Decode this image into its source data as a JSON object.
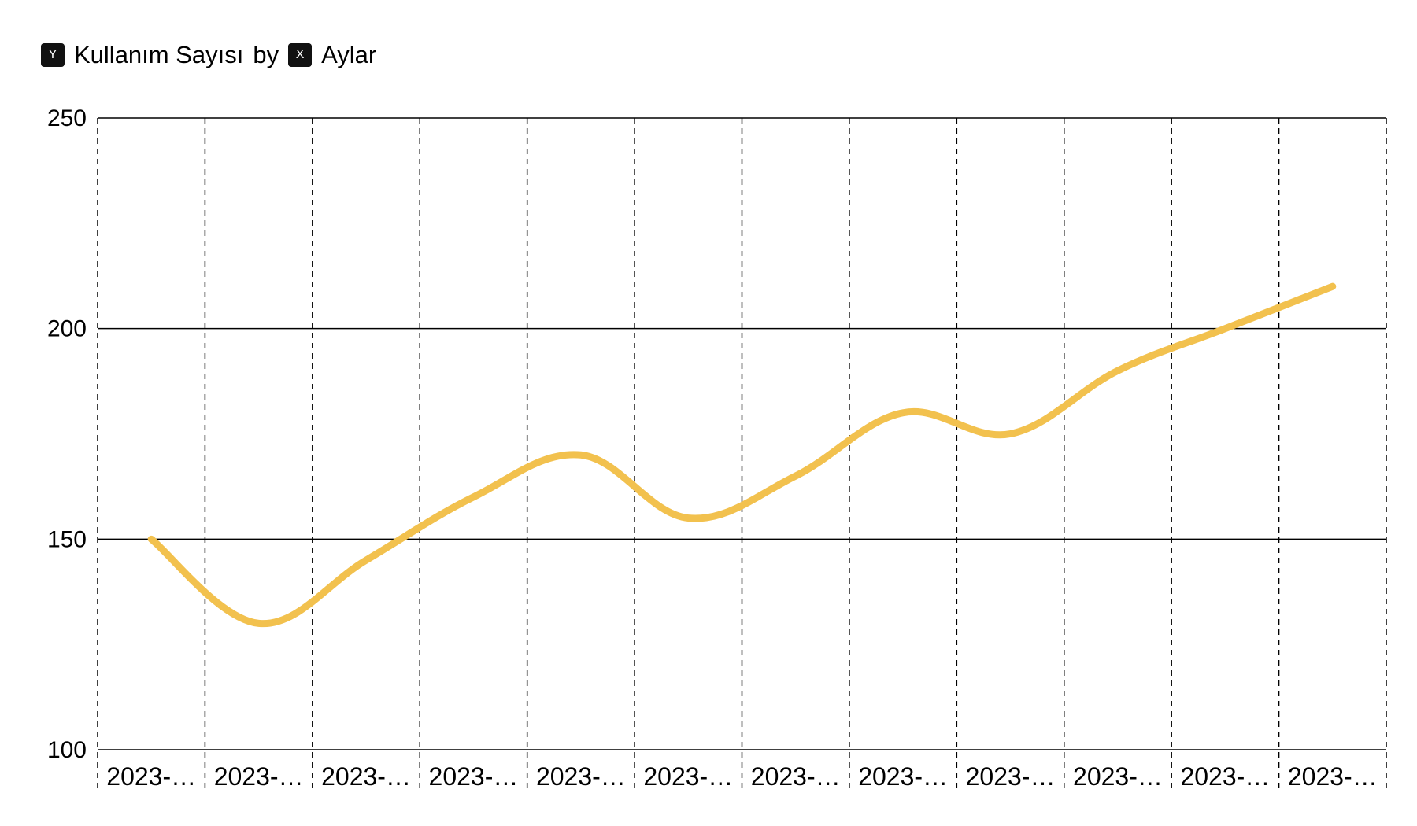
{
  "title": {
    "y_badge": "Y",
    "y_label": "Kullanım Sayısı",
    "connector": "by",
    "x_badge": "X",
    "x_label": "Aylar"
  },
  "colors": {
    "line": "#F2C14E",
    "grid": "#000000"
  },
  "chart_data": {
    "type": "line",
    "x": [
      "2023-…",
      "2023-…",
      "2023-…",
      "2023-…",
      "2023-…",
      "2023-…",
      "2023-…",
      "2023-…",
      "2023-…",
      "2023-…",
      "2023-…",
      "2023-…"
    ],
    "series": [
      {
        "values": [
          150,
          130,
          145,
          160,
          170,
          155,
          165,
          180,
          175,
          190,
          200,
          210
        ]
      }
    ],
    "ylim": [
      100,
      250
    ],
    "yticks": [
      100,
      150,
      200,
      250
    ],
    "grid": {
      "horizontal": "solid",
      "vertical": "dashed"
    },
    "curve": "smooth"
  }
}
